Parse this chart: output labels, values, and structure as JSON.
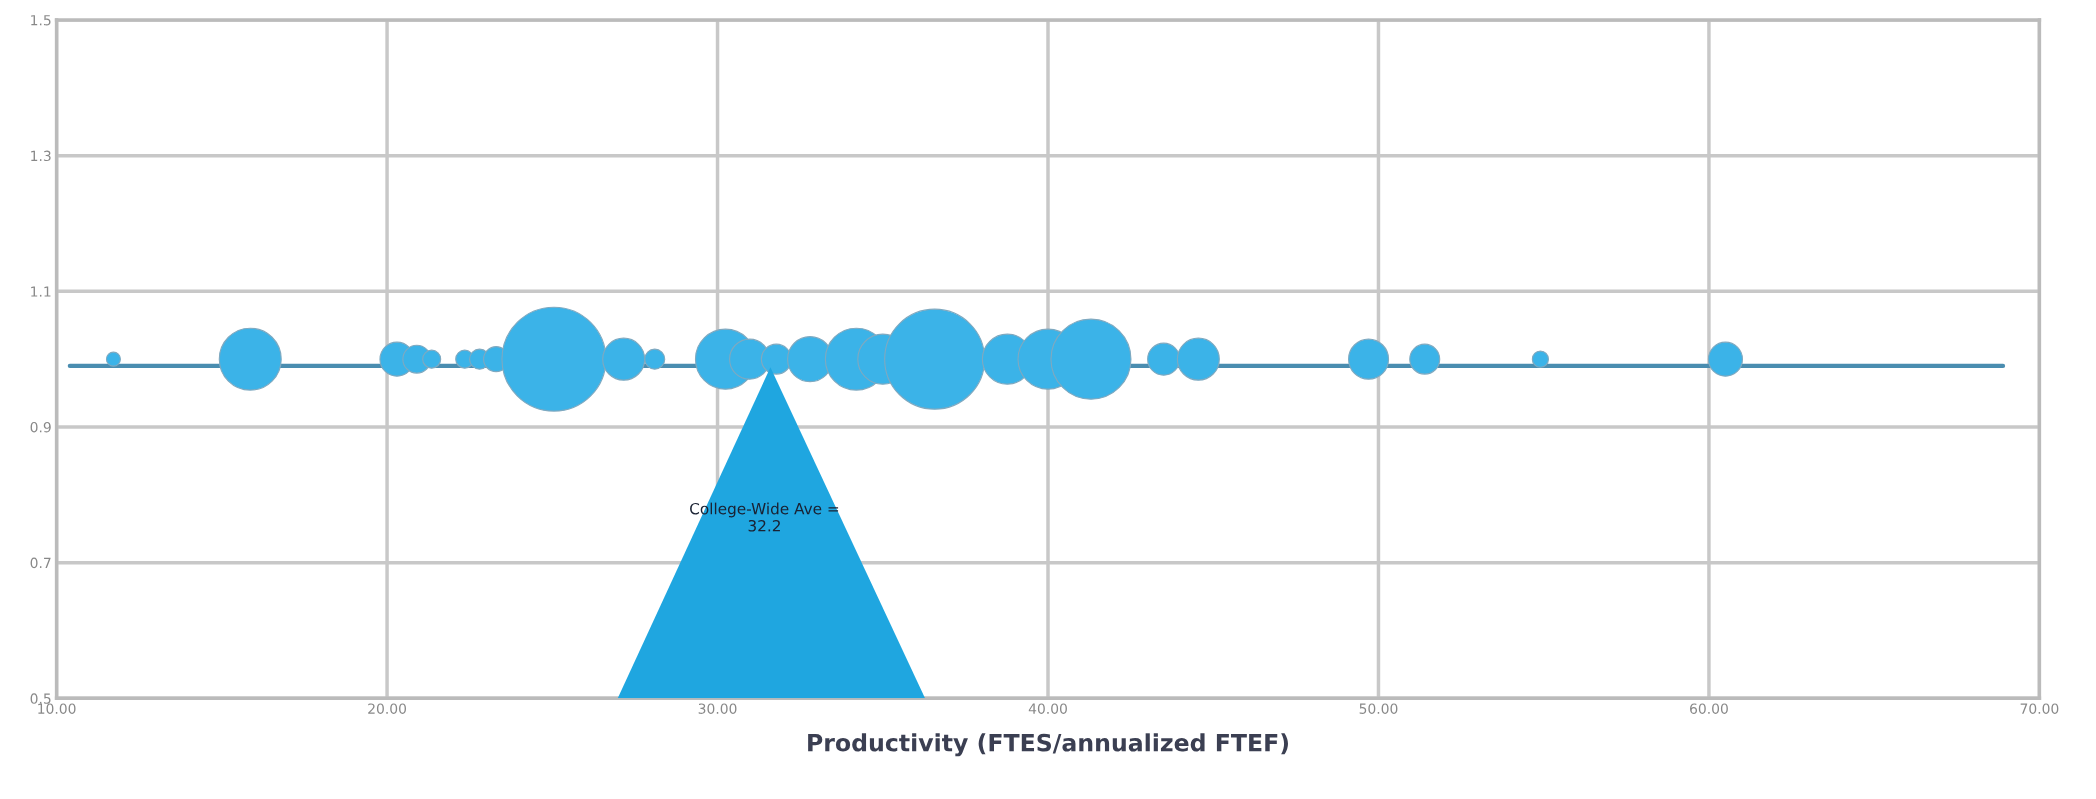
{
  "chart_data": {
    "type": "bubble",
    "xlabel": "Productivity (FTES/annualized FTEF)",
    "series": [
      {
        "color": "#3bb3e8",
        "x": [
          11.72,
          15.86,
          20.3,
          20.9,
          21.35,
          22.35,
          22.8,
          23.3,
          25.05,
          27.16,
          28.1,
          30.24,
          30.97,
          31.78,
          32.8,
          34.2,
          35.0,
          36.57,
          38.77,
          40.0,
          41.3,
          43.5,
          44.55,
          49.7,
          51.4,
          54.9,
          60.5
        ],
        "values": [
          1.0,
          1.0,
          1.0,
          1.0,
          1.0,
          1.0,
          1.0,
          1.0,
          1.0,
          1.0,
          1.0,
          1.0,
          1.0,
          1.0,
          1.0,
          1.0,
          1.0,
          1.0,
          1.0,
          1.0,
          1.0,
          1.0,
          1.0,
          1.0,
          1.0,
          1.0,
          1.0
        ],
        "sizes": [
          0.018,
          0.355,
          0.107,
          0.072,
          0.03,
          0.03,
          0.037,
          0.058,
          1,
          0.163,
          0.037,
          0.333,
          0.148,
          0.083,
          0.187,
          0.355,
          0.231,
          0.925,
          0.231,
          0.333,
          0.592,
          0.095,
          0.163,
          0.148,
          0.083,
          0.024,
          0.107
        ]
      },
      {
        "type": "line",
        "color": "#4a8db0",
        "x": [
          10.4,
          68.9
        ],
        "values": [
          0.99,
          0.99
        ]
      }
    ],
    "xlim": [
      10,
      70
    ],
    "ylim": [
      0.5,
      1.5
    ],
    "xticks": [
      {
        "value": 10,
        "label": "10.00"
      },
      {
        "value": 20,
        "label": "20.00"
      },
      {
        "value": 30,
        "label": "30.00"
      },
      {
        "value": 40,
        "label": "40.00"
      },
      {
        "value": 50,
        "label": "50.00"
      },
      {
        "value": 60,
        "label": "60.00"
      },
      {
        "value": 70,
        "label": "70.00"
      }
    ],
    "yticks": [
      0.5,
      0.7,
      0.9,
      1.1,
      1.3,
      1.5
    ],
    "grid": true,
    "annotations": [
      "College-Wide Ave =\n32.2"
    ]
  }
}
